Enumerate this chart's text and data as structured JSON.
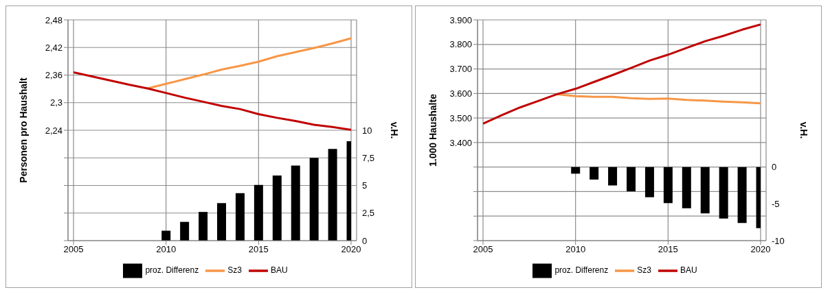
{
  "chart_data": [
    {
      "type": "line",
      "ylabel": "Personen pro Haushalt",
      "y2label": "v.H.",
      "x": [
        2005,
        2006,
        2007,
        2008,
        2009,
        2010,
        2011,
        2012,
        2013,
        2014,
        2015,
        2016,
        2017,
        2018,
        2019,
        2020
      ],
      "series": [
        {
          "name": "proz. Differenz",
          "type": "bar",
          "axis": "y2",
          "color": "#000000",
          "values": [
            null,
            null,
            null,
            null,
            null,
            0.9,
            1.7,
            2.6,
            3.4,
            4.3,
            5.05,
            5.9,
            6.8,
            7.5,
            8.3,
            9.0
          ]
        },
        {
          "name": "Sz3",
          "color": "#f79646",
          "values": [
            null,
            null,
            null,
            null,
            2.331,
            2.341,
            2.351,
            2.361,
            2.372,
            2.38,
            2.389,
            2.401,
            2.41,
            2.419,
            2.429,
            2.44
          ]
        },
        {
          "name": "BAU",
          "color": "#c00000",
          "values": [
            2.366,
            2.357,
            2.348,
            2.339,
            2.331,
            2.321,
            2.311,
            2.302,
            2.293,
            2.286,
            2.275,
            2.267,
            2.26,
            2.252,
            2.247,
            2.241
          ]
        }
      ],
      "xlim": [
        2005,
        2020
      ],
      "xticks": [
        2005,
        2010,
        2015,
        2020
      ],
      "ylim": [
        2.0,
        2.48
      ],
      "yticks": [
        {
          "value": 2.0,
          "label": null
        },
        {
          "value": 2.06,
          "label": null
        },
        {
          "value": 2.12,
          "label": null
        },
        {
          "value": 2.18,
          "label": null
        },
        {
          "value": 2.24,
          "label": "2,24"
        },
        {
          "value": 2.3,
          "label": "2,3"
        },
        {
          "value": 2.36,
          "label": "2,36"
        },
        {
          "value": 2.42,
          "label": "2,42"
        },
        {
          "value": 2.48,
          "label": "2,48"
        }
      ],
      "y2lim": [
        0,
        20
      ],
      "y2ticks": [
        0,
        {
          "value": 2.5,
          "label": "2,5"
        },
        5,
        {
          "value": 7.5,
          "label": "7,5"
        },
        10
      ],
      "grid": true,
      "legend": "bottom",
      "marker": "none",
      "line_style": "solid"
    },
    {
      "type": "line",
      "ylabel": "1.000 Haushalte",
      "y2label": "v.H.",
      "x": [
        2005,
        2006,
        2007,
        2008,
        2009,
        2010,
        2011,
        2012,
        2013,
        2014,
        2015,
        2016,
        2017,
        2018,
        2019,
        2020
      ],
      "series": [
        {
          "name": "proz. Differenz",
          "type": "bar",
          "axis": "y2",
          "color": "#000000",
          "values": [
            null,
            null,
            null,
            null,
            null,
            -0.9,
            -1.7,
            -2.5,
            -3.3,
            -4.1,
            -4.9,
            -5.6,
            -6.3,
            -7.0,
            -7.6,
            -8.3
          ]
        },
        {
          "name": "Sz3",
          "color": "#f79646",
          "values": [
            null,
            null,
            null,
            null,
            3597,
            3589,
            3586,
            3586,
            3581,
            3578,
            3579,
            3574,
            3571,
            3567,
            3564,
            3560
          ]
        },
        {
          "name": "BAU",
          "color": "#c00000",
          "values": [
            3477,
            3511,
            3543,
            3570,
            3597,
            3619,
            3647,
            3675,
            3704,
            3734,
            3758,
            3786,
            3813,
            3835,
            3860,
            3881
          ]
        }
      ],
      "xlim": [
        2005,
        2020
      ],
      "xticks": [
        2005,
        2010,
        2015,
        2020
      ],
      "ylim": [
        3000,
        3900
      ],
      "yticks": [
        {
          "value": 3000,
          "label": null
        },
        {
          "value": 3100,
          "label": null
        },
        {
          "value": 3200,
          "label": null
        },
        {
          "value": 3300,
          "label": null
        },
        {
          "value": 3400,
          "label": "3.400"
        },
        {
          "value": 3500,
          "label": "3.500"
        },
        {
          "value": 3600,
          "label": "3.600"
        },
        {
          "value": 3700,
          "label": "3.700"
        },
        {
          "value": 3800,
          "label": "3.800"
        },
        {
          "value": 3900,
          "label": "3.900"
        }
      ],
      "y2lim": [
        -10,
        20
      ],
      "y2ticks": [
        -10,
        -5,
        0
      ],
      "grid": true,
      "legend": "bottom",
      "marker": "none",
      "line_style": "solid"
    }
  ]
}
